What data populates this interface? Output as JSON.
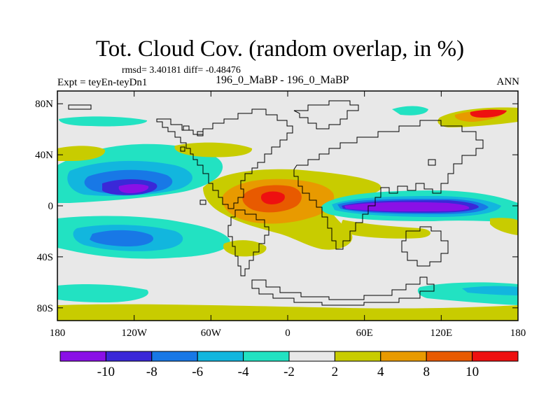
{
  "header": {
    "title": "Tot. Cloud Cov. (random overlap, in %)",
    "stats": "rmsd= 3.40181 diff= -0.48476",
    "left_label": "Expt = teyEn-teyDn1",
    "center_label": "196_0_MaBP - 196_0_MaBP",
    "right_label": "ANN"
  },
  "axes": {
    "lon_labels": [
      "180",
      "120W",
      "60W",
      "0",
      "60E",
      "120E",
      "180"
    ],
    "lat_labels": [
      "80N",
      "40N",
      "0",
      "40S",
      "80S"
    ]
  },
  "colorbar": {
    "tick_labels": [
      "-10",
      "-8",
      "-6",
      "-4",
      "-2",
      "2",
      "4",
      "8",
      "10"
    ],
    "colors": [
      "#8a10e6",
      "#3a28d8",
      "#1878e6",
      "#12b6de",
      "#22e2c2",
      "#e8e8e8",
      "#c8cc00",
      "#e89a00",
      "#e85a00",
      "#ee1010"
    ]
  },
  "colors": {
    "land_outline": "#000000",
    "background": "#e8e8e8"
  }
}
